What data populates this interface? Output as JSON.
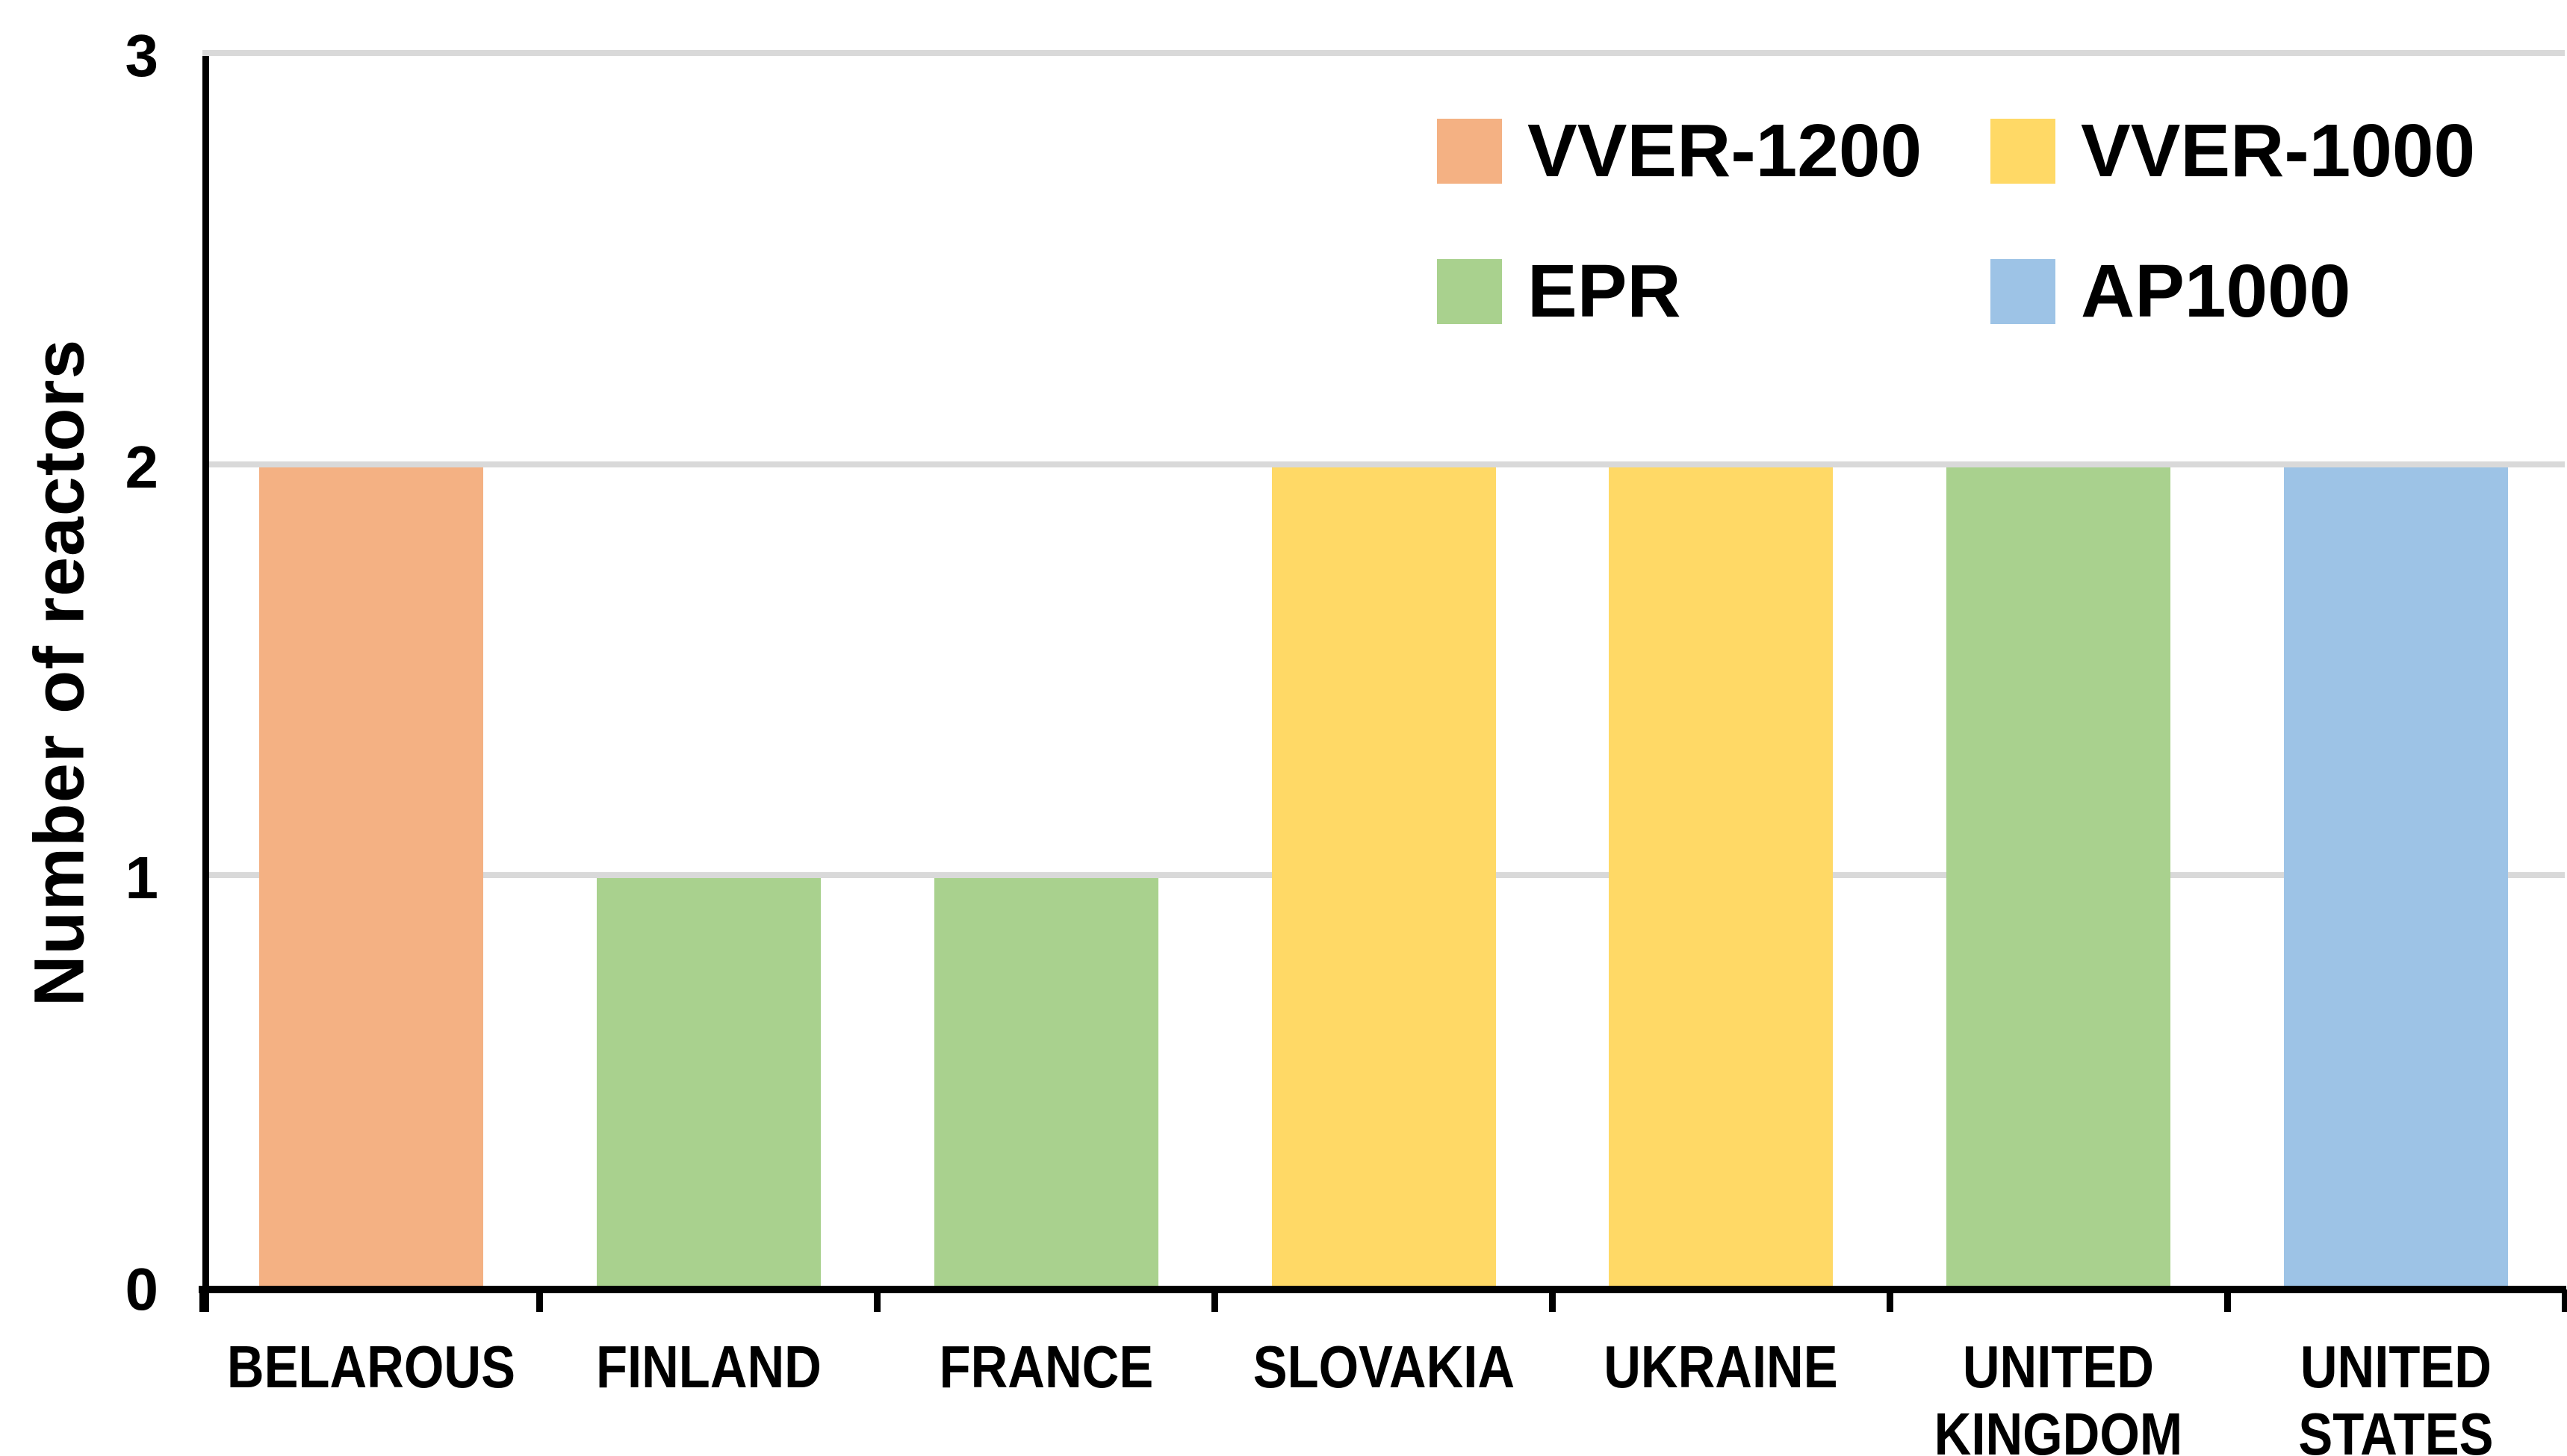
{
  "chart_data": {
    "type": "bar",
    "ylabel": "Number of reactors",
    "xlabel": "",
    "ylim": [
      0,
      3
    ],
    "yticks": [
      0,
      1,
      2,
      3
    ],
    "grid": "horizontal",
    "categories": [
      "BELAROUS",
      "FINLAND",
      "FRANCE",
      "SLOVAKIA",
      "UKRAINE",
      "UNITED\nKINGDOM",
      "UNITED\nSTATES"
    ],
    "bars": [
      {
        "category": "BELAROUS",
        "value": 2,
        "series": "VVER-1200"
      },
      {
        "category": "FINLAND",
        "value": 1,
        "series": "EPR"
      },
      {
        "category": "FRANCE",
        "value": 1,
        "series": "EPR"
      },
      {
        "category": "SLOVAKIA",
        "value": 2,
        "series": "VVER-1000"
      },
      {
        "category": "UKRAINE",
        "value": 2,
        "series": "VVER-1000"
      },
      {
        "category": "UNITED\nKINGDOM",
        "value": 2,
        "series": "EPR"
      },
      {
        "category": "UNITED\nSTATES",
        "value": 2,
        "series": "AP1000"
      }
    ],
    "legend": {
      "position": "top-right",
      "entries": [
        {
          "label": "VVER-1200",
          "color": "#F4B183"
        },
        {
          "label": "VVER-1000",
          "color": "#FFD966"
        },
        {
          "label": "EPR",
          "color": "#A9D18E"
        },
        {
          "label": "AP1000",
          "color": "#9DC3E6"
        }
      ]
    },
    "colors": {
      "background": "#FFFFFF",
      "axis": "#000000",
      "gridline": "#D9D9D9",
      "text": "#000000"
    }
  }
}
